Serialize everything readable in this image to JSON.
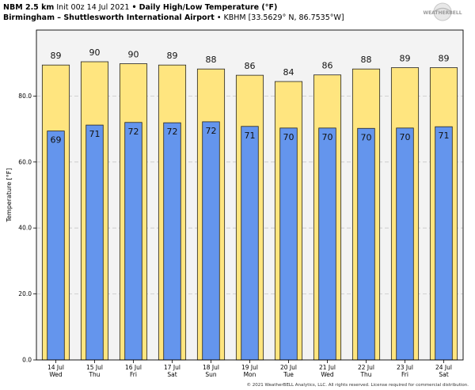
{
  "header": {
    "model": "NBM 2.5 km",
    "init": "Init 00z 14 Jul 2021",
    "title": "Daily High/Low Temperature (°F)",
    "station": "Birmingham – Shuttlesworth International Airport",
    "station_id": "KBHM [33.5629° N, 86.7535°W]",
    "bullet": "•"
  },
  "logo": {
    "text": "WEATHERBELL"
  },
  "footer": {
    "copyright": "© 2021 WeatherBELL Analytics, LLC. All rights reserved. License required for commercial distribution."
  },
  "chart_data": {
    "type": "bar",
    "title": "Daily High/Low Temperature (°F)",
    "ylabel": "Temperature [°F]",
    "ylim": [
      0,
      100
    ],
    "yticks": [
      "0.0",
      "20.0",
      "40.0",
      "60.0",
      "80.0"
    ],
    "ytick_values": [
      0,
      20,
      40,
      60,
      80
    ],
    "grid": true,
    "categories": [
      [
        "14 Jul",
        "Wed"
      ],
      [
        "15 Jul",
        "Thu"
      ],
      [
        "16 Jul",
        "Fri"
      ],
      [
        "17 Jul",
        "Sat"
      ],
      [
        "18 Jul",
        "Sun"
      ],
      [
        "19 Jul",
        "Mon"
      ],
      [
        "20 Jul",
        "Tue"
      ],
      [
        "21 Jul",
        "Wed"
      ],
      [
        "22 Jul",
        "Thu"
      ],
      [
        "23 Jul",
        "Fri"
      ],
      [
        "24 Jul",
        "Sat"
      ]
    ],
    "series": [
      {
        "values": [
          89.4,
          90.4,
          89.8,
          89.4,
          88.2,
          86.3,
          84.4,
          86.4,
          88.2,
          88.6,
          88.6
        ],
        "labels": [
          "89",
          "90",
          "90",
          "89",
          "88",
          "86",
          "84",
          "86",
          "88",
          "89",
          "89"
        ],
        "color": "#ffe57f"
      },
      {
        "values": [
          69.4,
          71.2,
          72.0,
          71.9,
          72.2,
          70.8,
          70.3,
          70.3,
          70.2,
          70.3,
          70.7
        ],
        "labels": [
          "69",
          "71",
          "72",
          "72",
          "72",
          "71",
          "70",
          "70",
          "70",
          "70",
          "71"
        ],
        "color": "#6495ed"
      }
    ]
  }
}
